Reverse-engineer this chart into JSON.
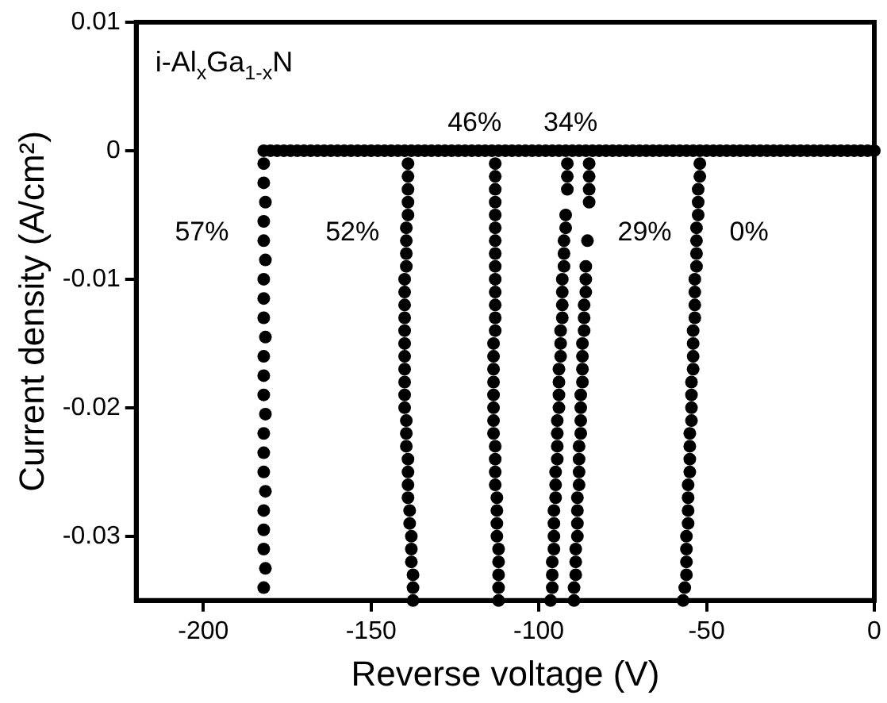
{
  "chart_data": {
    "type": "scatter",
    "xlabel": "Reverse voltage (V)",
    "ylabel": "Current density (A/cm²)",
    "xlim": [
      -220,
      0
    ],
    "ylim": [
      -0.035,
      0.01
    ],
    "xticks": [
      -200,
      -150,
      -100,
      -50,
      0
    ],
    "yticks": [
      0.01,
      0,
      -0.01,
      -0.02,
      -0.03
    ],
    "marker": "circle",
    "grid": false,
    "legend": false,
    "annotations": [
      "i-Al$_{x}$Ga$_{1-x}$N"
    ],
    "series": [
      {
        "name": "57%",
        "color": "#000000",
        "x": [
          -182,
          -180,
          -178,
          -176,
          -174,
          -172,
          -170,
          -168,
          -166,
          -164,
          -162,
          -160,
          -158,
          -156,
          -154,
          -152,
          -150,
          -148,
          -146,
          -144,
          -142,
          -182,
          -182,
          -181.5,
          -182,
          -182,
          -181.5,
          -182,
          -182,
          -182,
          -181.5,
          -182,
          -182,
          -182,
          -181.5,
          -182,
          -182,
          -182,
          -181.5,
          -182,
          -182,
          -182,
          -181.5,
          -182
        ],
        "values": [
          0,
          0,
          0,
          0,
          0,
          0,
          0,
          0,
          0,
          0,
          0,
          0,
          0,
          0,
          0,
          0,
          0,
          0,
          0,
          0,
          0,
          -0.001,
          -0.0025,
          -0.004,
          -0.0055,
          -0.007,
          -0.0085,
          -0.01,
          -0.0115,
          -0.013,
          -0.0145,
          -0.016,
          -0.0175,
          -0.019,
          -0.0205,
          -0.022,
          -0.0235,
          -0.025,
          -0.0265,
          -0.028,
          -0.0295,
          -0.031,
          -0.0325,
          -0.034
        ]
      },
      {
        "name": "52%",
        "color": "#000000",
        "x": [
          -140,
          -138,
          -136,
          -134,
          -132,
          -130,
          -128,
          -126,
          -124,
          -122,
          -120,
          -118,
          -116,
          -139,
          -139,
          -139,
          -139,
          -139,
          -139.5,
          -139.5,
          -139.5,
          -139.5,
          -140,
          -140,
          -140,
          -140,
          -140,
          -140,
          -140,
          -140,
          -140,
          -140,
          -140,
          -139.5,
          -139.5,
          -139.5,
          -139,
          -139,
          -139,
          -139,
          -138.5,
          -138.5,
          -138,
          -138,
          -138,
          -137.5,
          -137.5,
          -137.5
        ],
        "values": [
          0,
          0,
          0,
          0,
          0,
          0,
          0,
          0,
          0,
          0,
          0,
          0,
          0,
          -0.001,
          -0.002,
          -0.003,
          -0.004,
          -0.005,
          -0.006,
          -0.007,
          -0.008,
          -0.009,
          -0.01,
          -0.011,
          -0.012,
          -0.013,
          -0.014,
          -0.015,
          -0.016,
          -0.017,
          -0.018,
          -0.019,
          -0.02,
          -0.021,
          -0.022,
          -0.023,
          -0.024,
          -0.025,
          -0.026,
          -0.027,
          -0.028,
          -0.029,
          -0.03,
          -0.031,
          -0.032,
          -0.033,
          -0.034,
          -0.035
        ]
      },
      {
        "name": "46%",
        "color": "#000000",
        "x": [
          -114,
          -112,
          -110,
          -108,
          -106,
          -104,
          -102,
          -100,
          -98,
          -96,
          -94,
          -113,
          -113,
          -113,
          -113,
          -113,
          -113,
          -113,
          -113,
          -113,
          -113,
          -113,
          -113,
          -113,
          -113,
          -113.5,
          -113.5,
          -113.5,
          -113.5,
          -113.5,
          -113.5,
          -113.5,
          -113.5,
          -113,
          -113,
          -113,
          -113,
          -112.5,
          -112.5,
          -112.5,
          -112.5,
          -112,
          -112,
          -112,
          -112,
          -112
        ],
        "values": [
          0,
          0,
          0,
          0,
          0,
          0,
          0,
          0,
          0,
          0,
          0,
          -0.001,
          -0.002,
          -0.003,
          -0.004,
          -0.005,
          -0.006,
          -0.007,
          -0.008,
          -0.009,
          -0.01,
          -0.011,
          -0.012,
          -0.013,
          -0.014,
          -0.015,
          -0.016,
          -0.017,
          -0.018,
          -0.019,
          -0.02,
          -0.021,
          -0.022,
          -0.023,
          -0.024,
          -0.025,
          -0.026,
          -0.027,
          -0.028,
          -0.029,
          -0.03,
          -0.031,
          -0.032,
          -0.033,
          -0.034,
          -0.035
        ]
      },
      {
        "name": "34%",
        "color": "#000000",
        "x": [
          -92,
          -90,
          -88,
          -91.5,
          -91.5,
          -91.5,
          -92,
          -92,
          -92.5,
          -92.5,
          -92.5,
          -93,
          -93,
          -93,
          -93,
          -93.5,
          -93.5,
          -93.5,
          -94,
          -94,
          -94,
          -94,
          -94.5,
          -94.5,
          -94.5,
          -94.5,
          -95,
          -95,
          -95,
          -95.5,
          -95.5,
          -95.5,
          -95.5,
          -96,
          -96,
          -96,
          -96.5
        ],
        "values": [
          0,
          0,
          0,
          -0.001,
          -0.002,
          -0.003,
          -0.005,
          -0.006,
          -0.007,
          -0.008,
          -0.009,
          -0.01,
          -0.011,
          -0.012,
          -0.013,
          -0.014,
          -0.015,
          -0.016,
          -0.017,
          -0.018,
          -0.019,
          -0.02,
          -0.021,
          -0.022,
          -0.023,
          -0.024,
          -0.025,
          -0.026,
          -0.027,
          -0.028,
          -0.029,
          -0.03,
          -0.031,
          -0.032,
          -0.033,
          -0.034,
          -0.035
        ]
      },
      {
        "name": "29%",
        "color": "#000000",
        "x": [
          -86,
          -84,
          -82,
          -80,
          -78,
          -76,
          -74,
          -72,
          -70,
          -68,
          -66,
          -64,
          -62,
          -60,
          -58,
          -56,
          -85,
          -85,
          -85,
          -85,
          -85.5,
          -86,
          -86,
          -86,
          -86.5,
          -86.5,
          -86.5,
          -87,
          -87,
          -87,
          -87,
          -87.5,
          -87.5,
          -87.5,
          -87.5,
          -88,
          -88,
          -88,
          -88,
          -88.5,
          -88.5,
          -88.5,
          -88.5,
          -89,
          -89,
          -89,
          -89.5,
          -89.5
        ],
        "values": [
          0,
          0,
          0,
          0,
          0,
          0,
          0,
          0,
          0,
          0,
          0,
          0,
          0,
          0,
          0,
          0,
          -0.001,
          -0.002,
          -0.003,
          -0.004,
          -0.007,
          -0.009,
          -0.01,
          -0.011,
          -0.012,
          -0.013,
          -0.014,
          -0.015,
          -0.016,
          -0.017,
          -0.018,
          -0.019,
          -0.02,
          -0.021,
          -0.022,
          -0.023,
          -0.024,
          -0.025,
          -0.026,
          -0.027,
          -0.028,
          -0.029,
          -0.03,
          -0.031,
          -0.032,
          -0.033,
          -0.034,
          -0.035
        ]
      },
      {
        "name": "0%",
        "color": "#000000",
        "x": [
          -54,
          -52,
          -50,
          -48,
          -46,
          -44,
          -42,
          -40,
          -38,
          -36,
          -34,
          -32,
          -30,
          -28,
          -26,
          -24,
          -22,
          -20,
          -18,
          -16,
          -14,
          -12,
          -10,
          -8,
          -6,
          -4,
          -2,
          0,
          -52,
          -52,
          -52.5,
          -52.5,
          -52.5,
          -53,
          -53,
          -53,
          -53,
          -53.5,
          -53.5,
          -53.5,
          -53.5,
          -54,
          -54,
          -54,
          -54,
          -54.5,
          -54.5,
          -54.5,
          -54.5,
          -55,
          -55,
          -55,
          -55,
          -55.5,
          -55.5,
          -55.5,
          -55.5,
          -56,
          -56,
          -56,
          -56,
          -56.5,
          -57
        ],
        "values": [
          0,
          0,
          0,
          0,
          0,
          0,
          0,
          0,
          0,
          0,
          0,
          0,
          0,
          0,
          0,
          0,
          0,
          0,
          0,
          0,
          0,
          0,
          0,
          0,
          0,
          0,
          0,
          0,
          -0.001,
          -0.002,
          -0.003,
          -0.004,
          -0.005,
          -0.006,
          -0.007,
          -0.008,
          -0.009,
          -0.01,
          -0.011,
          -0.012,
          -0.013,
          -0.014,
          -0.015,
          -0.016,
          -0.017,
          -0.018,
          -0.019,
          -0.02,
          -0.021,
          -0.022,
          -0.023,
          -0.024,
          -0.025,
          -0.026,
          -0.027,
          -0.028,
          -0.029,
          -0.03,
          -0.031,
          -0.032,
          -0.033,
          -0.034,
          -0.035
        ]
      }
    ]
  }
}
